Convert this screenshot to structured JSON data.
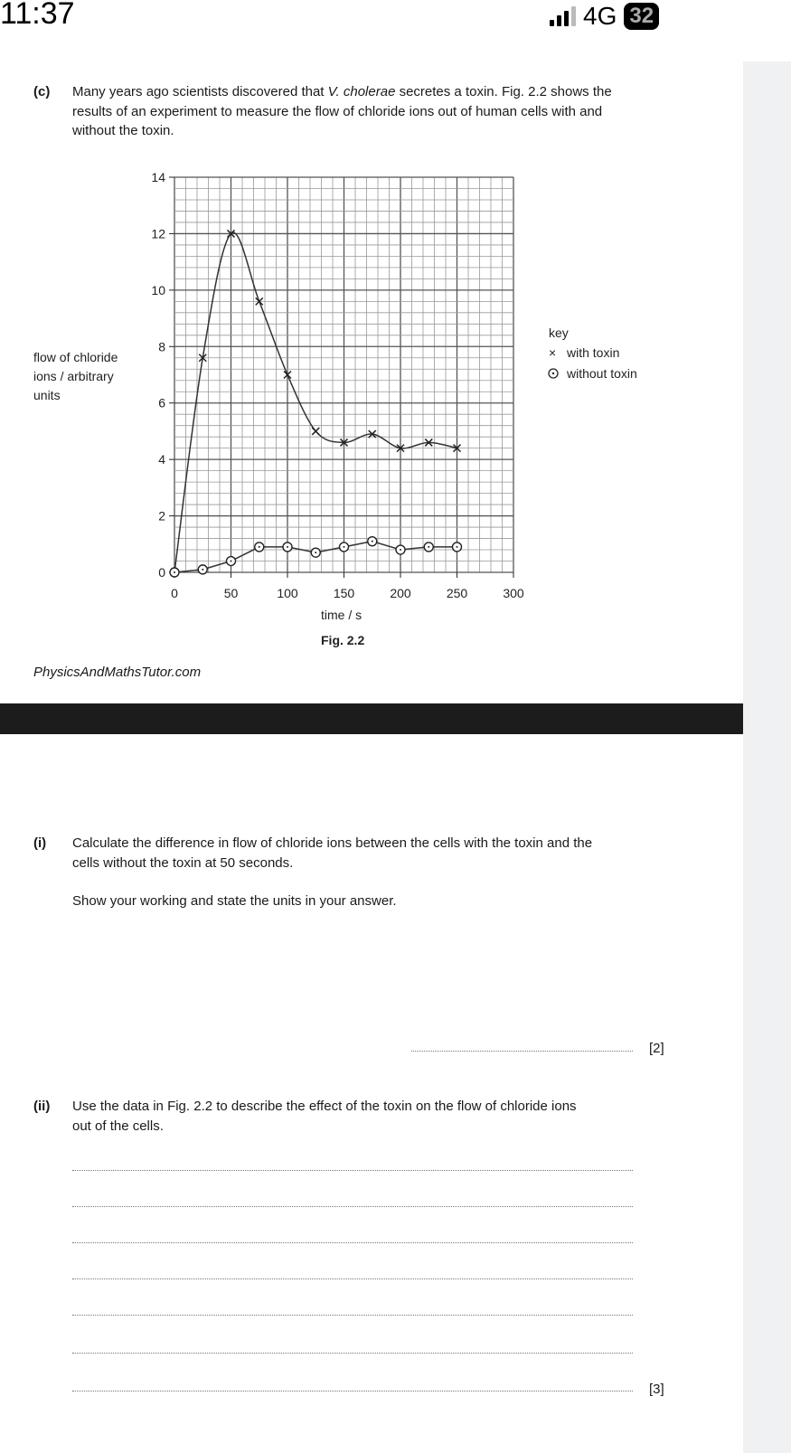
{
  "status_bar": {
    "time": "11:37",
    "network": "4G",
    "battery": "32"
  },
  "question_c": {
    "label": "(c)",
    "lines": [
      "Many years ago scientists discovered that ",
      "V. cholerae",
      " secretes a toxin. Fig. 2.2 shows the",
      "results of an experiment to measure the flow of chloride ions out of human cells with and",
      "without the toxin."
    ]
  },
  "chart_data": {
    "type": "line",
    "title": "",
    "xlabel": "time / s",
    "ylabel": [
      "flow of chloride",
      "ions / arbitrary",
      "units"
    ],
    "xlim": [
      0,
      300
    ],
    "ylim": [
      0,
      14
    ],
    "x_ticks": [
      "0",
      "50",
      "100",
      "150",
      "200",
      "250",
      "300"
    ],
    "y_ticks": [
      "0",
      "2",
      "4",
      "6",
      "8",
      "10",
      "12",
      "14"
    ],
    "grid": true,
    "x": [
      0,
      25,
      50,
      75,
      100,
      125,
      150,
      175,
      200,
      225,
      250
    ],
    "series": [
      {
        "name": "with toxin",
        "marker": "×",
        "values": [
          0,
          7.6,
          12.0,
          9.6,
          7.0,
          5.0,
          4.6,
          4.9,
          4.4,
          4.6,
          4.4
        ]
      },
      {
        "name": "without toxin",
        "marker": "⊙",
        "values": [
          0,
          0.1,
          0.4,
          0.9,
          0.9,
          0.7,
          0.9,
          1.1,
          0.8,
          0.9,
          0.9
        ]
      }
    ],
    "legend": {
      "title": "key",
      "placement": "right"
    },
    "caption": "Fig. 2.2"
  },
  "watermark": "PhysicsAndMathsTutor.com",
  "question_i": {
    "label": "(i)",
    "lines": [
      "Calculate the difference in flow of chloride ions between the cells with the toxin and the",
      "cells without the toxin at 50 seconds."
    ],
    "instruction": "Show your working and state the units in your answer.",
    "marks": "[2]"
  },
  "question_ii": {
    "label": "(ii)",
    "lines": [
      "Use the data in Fig. 2.2 to describe the effect of the toxin on the flow of chloride ions",
      "out of the cells."
    ],
    "marks": "[3]"
  }
}
